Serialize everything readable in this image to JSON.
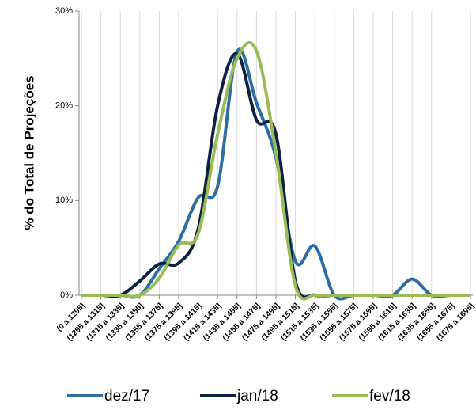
{
  "chart_data": {
    "type": "line",
    "y_label": "% do Total de Projeções",
    "categories": [
      "(0 a 1295]",
      "(1295 a 1315]",
      "(1315 a 1335]",
      "(1335 a 1355]",
      "(1355 a 1375]",
      "(1375 a 1395]",
      "(1395 a 1415]",
      "(1415 a 1435]",
      "(1435 a 1455]",
      "(1455 a 1475]",
      "(1475 a 1495]",
      "(1495 a 1515]",
      "(1515 a 1535]",
      "(1535 a 1555]",
      "(1555 a 1575]",
      "(1575 a 1595]",
      "(1595 a 1615]",
      "(1615 a 1635]",
      "(1635 a 1655]",
      "(1655 a 1675]",
      "(1675 a 1695]"
    ],
    "series": [
      {
        "name": "dez/17",
        "color": "#2e6da4",
        "values": [
          0,
          0,
          0,
          0,
          2.8,
          5.7,
          10.3,
          11.5,
          25.7,
          20.3,
          14.5,
          3.6,
          5.2,
          0,
          0,
          0,
          0,
          1.7,
          0,
          0,
          0
        ]
      },
      {
        "name": "jan/18",
        "color": "#0d2240",
        "values": [
          0,
          0,
          0,
          1.5,
          3.3,
          3.4,
          7,
          20,
          25.5,
          18.5,
          17,
          1.5,
          0,
          0,
          0,
          0,
          0,
          0,
          0,
          0,
          0
        ]
      },
      {
        "name": "fev/18",
        "color": "#9bbb59",
        "values": [
          0,
          0,
          0,
          0,
          1.8,
          5.3,
          6.5,
          17,
          25,
          25.8,
          15,
          1,
          0,
          0,
          0,
          0,
          0,
          0,
          0,
          0,
          0
        ]
      }
    ],
    "ylim": [
      0,
      30
    ],
    "yticks": [
      {
        "value": 0,
        "label": "0%"
      },
      {
        "value": 10,
        "label": "10%"
      },
      {
        "value": 20,
        "label": "20%"
      },
      {
        "value": 30,
        "label": "30%"
      }
    ],
    "grid": true,
    "legend": "bottom"
  }
}
